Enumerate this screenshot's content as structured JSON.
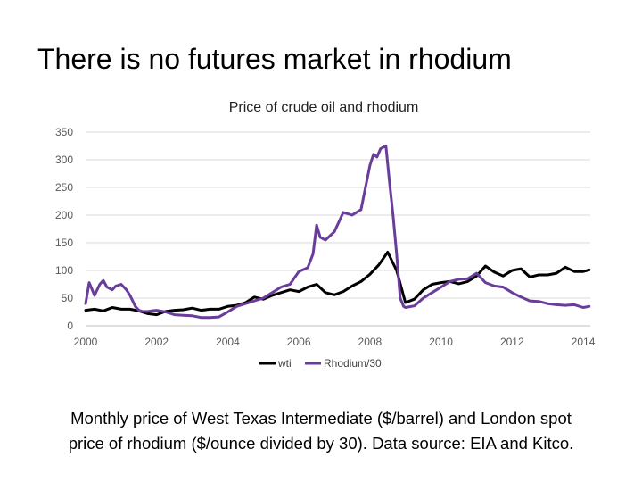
{
  "slide": {
    "title": "There is no futures market in rhodium",
    "caption_line1": "Monthly price of West Texas Intermediate ($/barrel) and London spot",
    "caption_line2": "price of rhodium ($/ounce divided by 30).  Data source: EIA and Kitco."
  },
  "colors": {
    "wti": "#000000",
    "rhodium": "#6a3d9a",
    "grid": "#d9d9d9",
    "axis_text": "#595959"
  },
  "chart_data": {
    "type": "line",
    "title": "Price of crude oil and rhodium",
    "xlabel": "",
    "ylabel": "",
    "xlim": [
      2000,
      2014.2
    ],
    "ylim": [
      0,
      350
    ],
    "xticks": [
      2000,
      2002,
      2004,
      2006,
      2008,
      2010,
      2012,
      2014
    ],
    "yticks": [
      0,
      50,
      100,
      150,
      200,
      250,
      300,
      350
    ],
    "grid": "horizontal",
    "legend_position": "bottom",
    "series": [
      {
        "name": "wti",
        "x": [
          2000.0,
          2000.25,
          2000.5,
          2000.75,
          2001.0,
          2001.25,
          2001.5,
          2001.75,
          2002.0,
          2002.25,
          2002.5,
          2002.75,
          2003.0,
          2003.25,
          2003.5,
          2003.75,
          2004.0,
          2004.25,
          2004.5,
          2004.75,
          2005.0,
          2005.25,
          2005.5,
          2005.75,
          2006.0,
          2006.25,
          2006.5,
          2006.75,
          2007.0,
          2007.25,
          2007.5,
          2007.75,
          2008.0,
          2008.25,
          2008.5,
          2008.75,
          2009.0,
          2009.25,
          2009.5,
          2009.75,
          2010.0,
          2010.25,
          2010.5,
          2010.75,
          2011.0,
          2011.25,
          2011.5,
          2011.75,
          2012.0,
          2012.25,
          2012.5,
          2012.75,
          2013.0,
          2013.25,
          2013.5,
          2013.75,
          2014.0,
          2014.17
        ],
        "values": [
          28,
          30,
          27,
          33,
          30,
          30,
          27,
          22,
          20,
          26,
          28,
          29,
          32,
          28,
          30,
          30,
          35,
          37,
          42,
          52,
          48,
          55,
          60,
          65,
          62,
          70,
          75,
          60,
          56,
          62,
          72,
          80,
          93,
          110,
          133,
          100,
          42,
          48,
          65,
          75,
          78,
          80,
          76,
          80,
          90,
          108,
          97,
          90,
          100,
          103,
          88,
          92,
          92,
          95,
          106,
          98,
          98,
          101
        ]
      },
      {
        "name": "Rhodium/30",
        "x": [
          2000.0,
          2000.1,
          2000.25,
          2000.4,
          2000.5,
          2000.6,
          2000.75,
          2000.85,
          2001.0,
          2001.15,
          2001.25,
          2001.4,
          2001.5,
          2001.6,
          2001.75,
          2001.85,
          2002.0,
          2002.25,
          2002.5,
          2002.75,
          2003.0,
          2003.25,
          2003.5,
          2003.75,
          2004.0,
          2004.25,
          2004.5,
          2004.75,
          2005.0,
          2005.25,
          2005.5,
          2005.75,
          2006.0,
          2006.25,
          2006.4,
          2006.5,
          2006.6,
          2006.75,
          2007.0,
          2007.25,
          2007.5,
          2007.75,
          2008.0,
          2008.1,
          2008.2,
          2008.3,
          2008.45,
          2008.55,
          2008.65,
          2008.75,
          2008.85,
          2008.95,
          2009.0,
          2009.25,
          2009.5,
          2009.75,
          2010.0,
          2010.25,
          2010.5,
          2010.75,
          2011.0,
          2011.25,
          2011.5,
          2011.75,
          2012.0,
          2012.25,
          2012.5,
          2012.75,
          2013.0,
          2013.25,
          2013.5,
          2013.75,
          2014.0,
          2014.17
        ],
        "values": [
          40,
          78,
          55,
          75,
          82,
          70,
          65,
          72,
          75,
          65,
          55,
          35,
          28,
          26,
          26,
          27,
          28,
          25,
          20,
          19,
          18,
          15,
          15,
          16,
          25,
          35,
          40,
          45,
          50,
          60,
          70,
          75,
          98,
          105,
          130,
          182,
          160,
          155,
          170,
          205,
          200,
          210,
          290,
          310,
          305,
          320,
          325,
          260,
          200,
          130,
          50,
          35,
          33,
          36,
          50,
          60,
          70,
          80,
          84,
          85,
          95,
          78,
          72,
          70,
          60,
          52,
          45,
          44,
          40,
          38,
          37,
          38,
          33,
          35
        ]
      }
    ]
  }
}
